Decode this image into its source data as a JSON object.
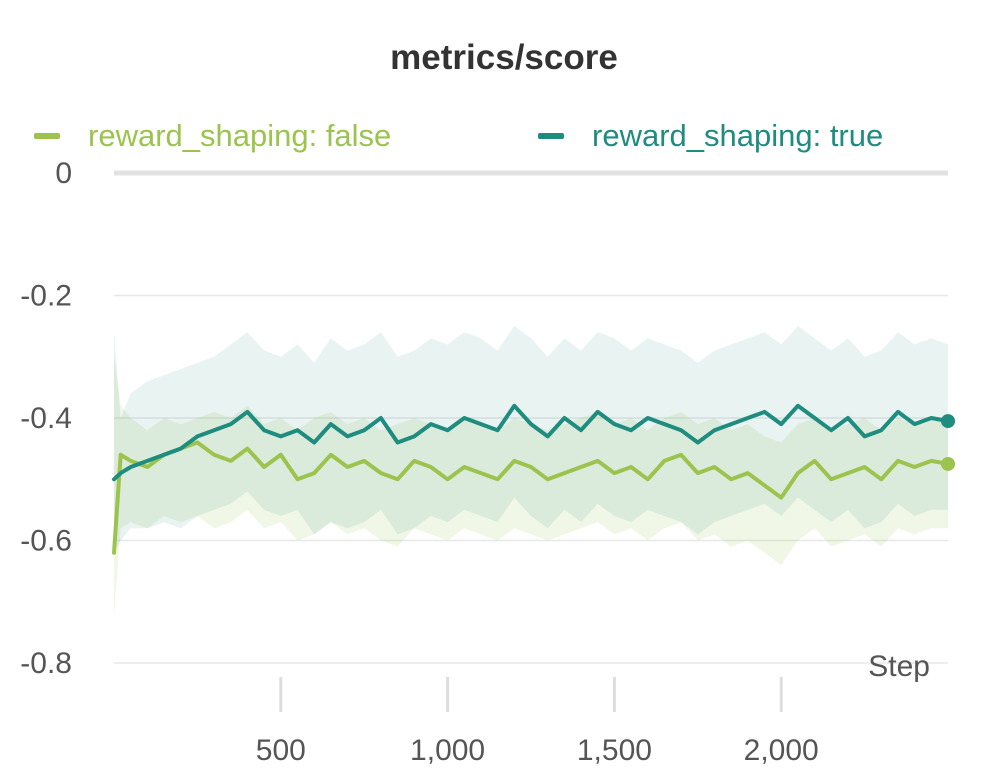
{
  "chart_data": {
    "type": "line",
    "title": "metrics/score",
    "xlabel": "Step",
    "ylabel": "",
    "xlim": [
      0,
      2500
    ],
    "ylim": [
      -0.8,
      0
    ],
    "x_ticks": [
      500,
      1000,
      1500,
      2000
    ],
    "x_tick_labels": [
      "500",
      "1,000",
      "1,500",
      "2,000"
    ],
    "y_ticks": [
      0,
      -0.2,
      -0.4,
      -0.6,
      -0.8
    ],
    "y_tick_labels": [
      "0",
      "-0.2",
      "-0.4",
      "-0.6",
      "-0.8"
    ],
    "grid": true,
    "legend": "top",
    "x": [
      0,
      20,
      50,
      100,
      150,
      200,
      250,
      300,
      350,
      400,
      450,
      500,
      550,
      600,
      650,
      700,
      750,
      800,
      850,
      900,
      950,
      1000,
      1050,
      1100,
      1150,
      1200,
      1250,
      1300,
      1350,
      1400,
      1450,
      1500,
      1550,
      1600,
      1650,
      1700,
      1750,
      1800,
      1850,
      1900,
      1950,
      2000,
      2050,
      2100,
      2150,
      2200,
      2250,
      2300,
      2350,
      2400,
      2450,
      2500
    ],
    "series": [
      {
        "name": "reward_shaping: false",
        "color": "#9dc34f",
        "values": [
          -0.62,
          -0.46,
          -0.47,
          -0.48,
          -0.46,
          -0.45,
          -0.44,
          -0.46,
          -0.47,
          -0.45,
          -0.48,
          -0.46,
          -0.5,
          -0.49,
          -0.46,
          -0.48,
          -0.47,
          -0.49,
          -0.5,
          -0.47,
          -0.48,
          -0.5,
          -0.48,
          -0.49,
          -0.5,
          -0.47,
          -0.48,
          -0.5,
          -0.49,
          -0.48,
          -0.47,
          -0.49,
          -0.48,
          -0.5,
          -0.47,
          -0.46,
          -0.49,
          -0.48,
          -0.5,
          -0.49,
          -0.51,
          -0.53,
          -0.49,
          -0.47,
          -0.5,
          -0.49,
          -0.48,
          -0.5,
          -0.47,
          -0.48,
          -0.47,
          -0.475
        ],
        "upper": [
          -0.3,
          -0.38,
          -0.4,
          -0.42,
          -0.4,
          -0.41,
          -0.4,
          -0.39,
          -0.4,
          -0.38,
          -0.41,
          -0.4,
          -0.42,
          -0.4,
          -0.39,
          -0.41,
          -0.4,
          -0.42,
          -0.41,
          -0.4,
          -0.41,
          -0.42,
          -0.4,
          -0.41,
          -0.42,
          -0.4,
          -0.41,
          -0.42,
          -0.41,
          -0.4,
          -0.39,
          -0.41,
          -0.4,
          -0.42,
          -0.4,
          -0.39,
          -0.41,
          -0.4,
          -0.42,
          -0.41,
          -0.43,
          -0.44,
          -0.41,
          -0.4,
          -0.42,
          -0.41,
          -0.4,
          -0.42,
          -0.4,
          -0.41,
          -0.4,
          -0.4
        ],
        "lower": [
          -0.72,
          -0.58,
          -0.57,
          -0.58,
          -0.56,
          -0.57,
          -0.56,
          -0.58,
          -0.57,
          -0.55,
          -0.58,
          -0.57,
          -0.6,
          -0.59,
          -0.57,
          -0.59,
          -0.58,
          -0.6,
          -0.61,
          -0.58,
          -0.59,
          -0.6,
          -0.58,
          -0.59,
          -0.6,
          -0.58,
          -0.59,
          -0.6,
          -0.59,
          -0.58,
          -0.57,
          -0.59,
          -0.58,
          -0.6,
          -0.58,
          -0.57,
          -0.6,
          -0.59,
          -0.61,
          -0.6,
          -0.62,
          -0.64,
          -0.6,
          -0.58,
          -0.61,
          -0.6,
          -0.59,
          -0.61,
          -0.58,
          -0.59,
          -0.58,
          -0.58
        ]
      },
      {
        "name": "reward_shaping: true",
        "color": "#1e8c7e",
        "values": [
          -0.5,
          -0.49,
          -0.48,
          -0.47,
          -0.46,
          -0.45,
          -0.43,
          -0.42,
          -0.41,
          -0.39,
          -0.42,
          -0.43,
          -0.42,
          -0.44,
          -0.41,
          -0.43,
          -0.42,
          -0.4,
          -0.44,
          -0.43,
          -0.41,
          -0.42,
          -0.4,
          -0.41,
          -0.42,
          -0.38,
          -0.41,
          -0.43,
          -0.4,
          -0.42,
          -0.39,
          -0.41,
          -0.42,
          -0.4,
          -0.41,
          -0.42,
          -0.44,
          -0.42,
          -0.41,
          -0.4,
          -0.39,
          -0.41,
          -0.38,
          -0.4,
          -0.42,
          -0.4,
          -0.43,
          -0.42,
          -0.39,
          -0.41,
          -0.4,
          -0.405
        ],
        "upper": [
          -0.26,
          -0.4,
          -0.36,
          -0.34,
          -0.33,
          -0.32,
          -0.31,
          -0.3,
          -0.28,
          -0.26,
          -0.29,
          -0.3,
          -0.28,
          -0.31,
          -0.27,
          -0.29,
          -0.28,
          -0.26,
          -0.3,
          -0.29,
          -0.27,
          -0.28,
          -0.26,
          -0.27,
          -0.29,
          -0.25,
          -0.27,
          -0.3,
          -0.27,
          -0.29,
          -0.26,
          -0.27,
          -0.29,
          -0.27,
          -0.28,
          -0.29,
          -0.31,
          -0.29,
          -0.28,
          -0.27,
          -0.26,
          -0.28,
          -0.25,
          -0.27,
          -0.29,
          -0.27,
          -0.3,
          -0.29,
          -0.26,
          -0.28,
          -0.27,
          -0.28
        ],
        "lower": [
          -0.62,
          -0.6,
          -0.58,
          -0.58,
          -0.57,
          -0.58,
          -0.56,
          -0.55,
          -0.54,
          -0.52,
          -0.55,
          -0.56,
          -0.55,
          -0.59,
          -0.57,
          -0.58,
          -0.57,
          -0.55,
          -0.59,
          -0.58,
          -0.56,
          -0.57,
          -0.55,
          -0.56,
          -0.57,
          -0.53,
          -0.56,
          -0.58,
          -0.55,
          -0.57,
          -0.54,
          -0.56,
          -0.57,
          -0.55,
          -0.56,
          -0.57,
          -0.59,
          -0.57,
          -0.56,
          -0.55,
          -0.54,
          -0.56,
          -0.53,
          -0.55,
          -0.57,
          -0.55,
          -0.58,
          -0.57,
          -0.54,
          -0.56,
          -0.55,
          -0.55
        ]
      }
    ]
  }
}
